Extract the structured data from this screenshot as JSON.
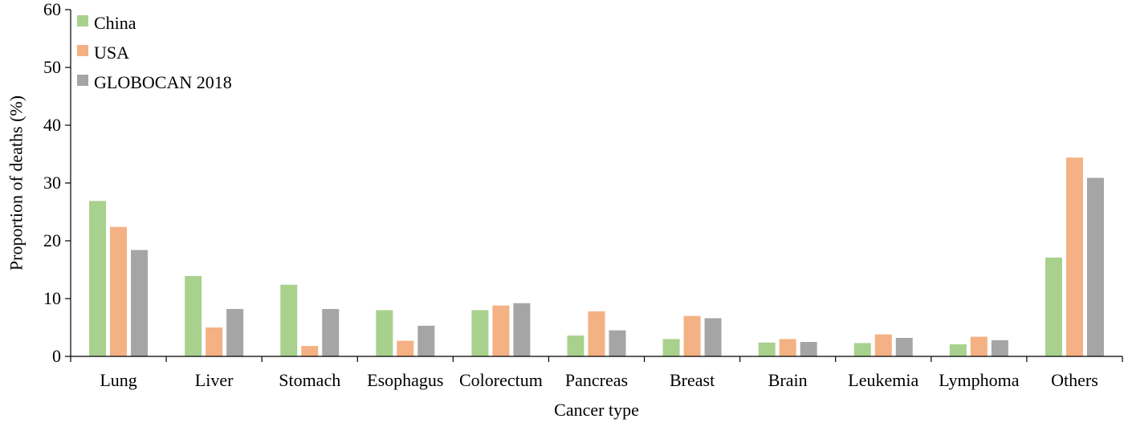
{
  "chart_data": {
    "type": "bar",
    "title": "",
    "xlabel": "Cancer type",
    "ylabel": "Proportion of deaths (%)",
    "ylim": [
      0,
      60
    ],
    "yticks": [
      "0",
      "10",
      "20",
      "30",
      "40",
      "50",
      "60"
    ],
    "grid": false,
    "legend_position": "top-left",
    "categories": [
      "Lung",
      "Liver",
      "Stomach",
      "Esophagus",
      "Colorectum",
      "Pancreas",
      "Breast",
      "Brain",
      "Leukemia",
      "Lymphoma",
      "Others"
    ],
    "series": [
      {
        "name": "China",
        "color": "#a9d18e",
        "values": [
          26.9,
          13.9,
          12.4,
          8.0,
          8.0,
          3.6,
          3.0,
          2.4,
          2.3,
          2.1,
          17.1
        ]
      },
      {
        "name": "USA",
        "color": "#f4b183",
        "values": [
          22.4,
          5.0,
          1.8,
          2.7,
          8.8,
          7.8,
          7.0,
          3.0,
          3.8,
          3.4,
          34.4
        ]
      },
      {
        "name": "GLOBOCAN 2018",
        "color": "#a5a5a5",
        "values": [
          18.4,
          8.2,
          8.2,
          5.3,
          9.2,
          4.5,
          6.6,
          2.5,
          3.2,
          2.8,
          30.9
        ]
      }
    ]
  }
}
